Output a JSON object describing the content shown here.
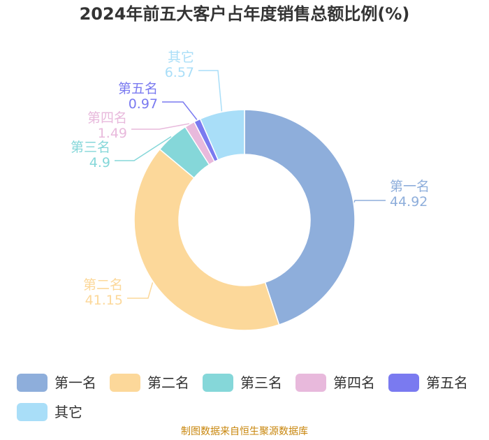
{
  "title": "2024年前五大客户占年度销售总额比例(%)",
  "source": "制图数据来自恒生聚源数据库",
  "chart_data": {
    "type": "pie",
    "variant": "donut",
    "title": "2024年前五大客户占年度销售总额比例(%)",
    "unit": "%",
    "categories": [
      "第一名",
      "第二名",
      "第三名",
      "第四名",
      "第五名",
      "其它"
    ],
    "values": [
      44.92,
      41.15,
      4.9,
      1.49,
      0.97,
      6.57
    ],
    "value_labels": [
      "44.92",
      "41.15",
      "4.9",
      "1.49",
      "0.97",
      "6.57"
    ],
    "colors": [
      "#8eaedb",
      "#fcd89a",
      "#85d7d9",
      "#e8b9dc",
      "#7a7af0",
      "#a9def8"
    ],
    "start_angle_deg": 90,
    "direction": "clockwise",
    "legend_position": "bottom"
  }
}
